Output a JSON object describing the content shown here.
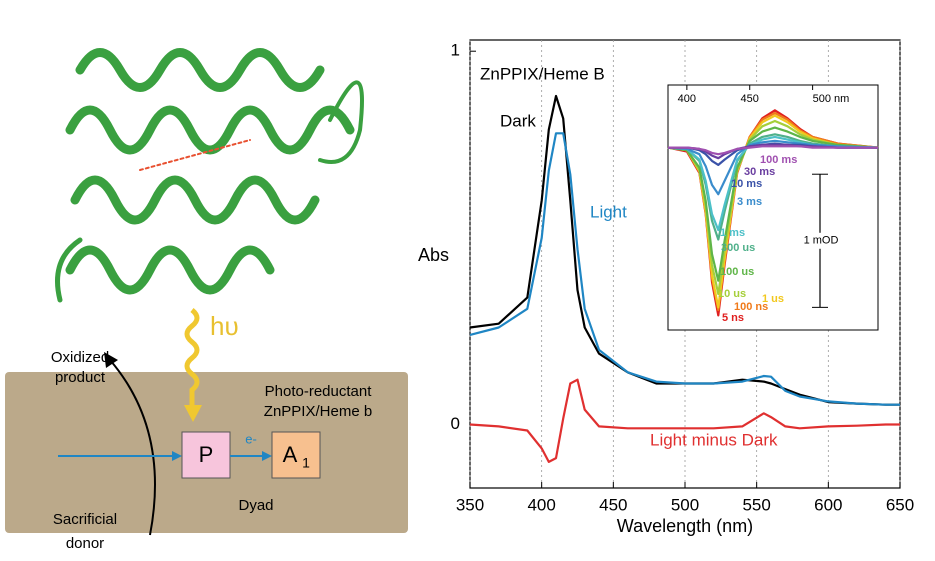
{
  "chart_data": [
    {
      "type": "line",
      "annotation": "ZnPPIX/Heme B",
      "ylabel": "Abs",
      "xlabel": "Wavelength (nm)",
      "x": [
        350,
        370,
        390,
        400,
        405,
        410,
        415,
        420,
        425,
        430,
        440,
        460,
        480,
        500,
        520,
        540,
        555,
        560,
        570,
        580,
        600,
        620,
        640,
        650
      ],
      "series": [
        {
          "name": "Dark",
          "color": "#000000",
          "values": [
            0.26,
            0.27,
            0.34,
            0.6,
            0.79,
            0.88,
            0.82,
            0.6,
            0.36,
            0.26,
            0.19,
            0.14,
            0.11,
            0.11,
            0.11,
            0.12,
            0.115,
            0.11,
            0.095,
            0.08,
            0.06,
            0.056,
            0.053,
            0.053
          ]
        },
        {
          "name": "Light",
          "color": "#1f86c4",
          "values": [
            0.24,
            0.26,
            0.31,
            0.5,
            0.68,
            0.78,
            0.78,
            0.67,
            0.47,
            0.31,
            0.2,
            0.14,
            0.115,
            0.11,
            0.11,
            0.115,
            0.13,
            0.128,
            0.09,
            0.075,
            0.062,
            0.056,
            0.053,
            0.053
          ]
        },
        {
          "name": "Light minus Dark",
          "color": "#e03030",
          "values": [
            0,
            -0.005,
            -0.016,
            -0.064,
            -0.1,
            -0.09,
            0.016,
            0.11,
            0.12,
            0.04,
            -0.005,
            -0.01,
            -0.01,
            -0.01,
            -0.01,
            -0.005,
            0.03,
            0.02,
            -0.005,
            -0.01,
            -0.005,
            -0.003,
            0,
            0
          ]
        }
      ],
      "xlim": [
        350,
        650
      ],
      "xticks": [
        350,
        400,
        450,
        500,
        550,
        600,
        650
      ],
      "ylim": [
        -0.17,
        1.03
      ],
      "yticks": [
        0,
        1
      ],
      "grid": true
    },
    {
      "type": "line",
      "x": [
        385,
        400,
        410,
        415,
        420,
        425,
        430,
        440,
        450,
        460,
        470,
        480,
        490,
        500,
        520,
        552
      ],
      "xlim": [
        385,
        552
      ],
      "xticks": [
        400,
        450,
        {
          "value": 500,
          "label": "500 nm"
        }
      ],
      "ylim": [
        -1.37,
        0.47
      ],
      "scale_bar": {
        "value": 1,
        "label": "1 mOD"
      },
      "series": [
        {
          "name": "5 ns",
          "color": "#e02020",
          "values": [
            0,
            -0.03,
            -0.19,
            -0.5,
            -1.01,
            -1.26,
            -0.88,
            -0.19,
            0.08,
            0.22,
            0.28,
            0.22,
            0.14,
            0.08,
            0.03,
            0
          ]
        },
        {
          "name": "100 ns",
          "color": "#f07a1a",
          "values": [
            0,
            -0.02,
            -0.18,
            -0.49,
            -0.98,
            -1.22,
            -0.85,
            -0.18,
            0.08,
            0.21,
            0.26,
            0.21,
            0.13,
            0.08,
            0.03,
            0
          ]
        },
        {
          "name": "1 us",
          "color": "#f2c81e",
          "values": [
            0,
            -0.02,
            -0.18,
            -0.48,
            -0.96,
            -1.2,
            -0.84,
            -0.18,
            0.07,
            0.19,
            0.24,
            0.19,
            0.12,
            0.07,
            0.02,
            0
          ]
        },
        {
          "name": "10 us",
          "color": "#a6cf3a",
          "values": [
            0,
            -0.02,
            -0.17,
            -0.44,
            -0.88,
            -1.1,
            -0.77,
            -0.17,
            0.06,
            0.16,
            0.2,
            0.16,
            0.1,
            0.06,
            0.02,
            0
          ]
        },
        {
          "name": "100 us",
          "color": "#5fb548",
          "values": [
            0,
            -0.02,
            -0.15,
            -0.4,
            -0.8,
            -1,
            -0.7,
            -0.15,
            0.05,
            0.12,
            0.15,
            0.12,
            0.08,
            0.05,
            0.02,
            0
          ]
        },
        {
          "name": "300 us",
          "color": "#4fb08a",
          "values": [
            0,
            -0.01,
            -0.1,
            -0.28,
            -0.55,
            -0.69,
            -0.48,
            -0.1,
            0.03,
            0.08,
            0.1,
            0.08,
            0.05,
            0.03,
            0.01,
            0
          ]
        },
        {
          "name": "1 ms",
          "color": "#4cc0c8",
          "values": [
            0,
            -0.01,
            -0.09,
            -0.25,
            -0.5,
            -0.62,
            -0.43,
            -0.09,
            0.02,
            0.06,
            0.08,
            0.06,
            0.04,
            0.02,
            0.01,
            0
          ]
        },
        {
          "name": "3 ms",
          "color": "#3a8ccc",
          "values": [
            0,
            -0.01,
            -0.05,
            -0.14,
            -0.28,
            -0.35,
            -0.25,
            -0.05,
            0.02,
            0.04,
            0.05,
            0.04,
            0.03,
            0.02,
            0.01,
            0
          ]
        },
        {
          "name": "10 ms",
          "color": "#3a52a8",
          "values": [
            0,
            0,
            -0.02,
            -0.05,
            -0.1,
            -0.13,
            -0.09,
            -0.02,
            0.01,
            0.02,
            0.03,
            0.02,
            0.02,
            0.01,
            0,
            0
          ]
        },
        {
          "name": "30 ms",
          "color": "#6a3ea0",
          "values": [
            0,
            0,
            -0.01,
            -0.03,
            -0.06,
            -0.08,
            -0.05,
            -0.01,
            0.01,
            0.02,
            0.02,
            0.02,
            0.01,
            0.01,
            0,
            0
          ]
        },
        {
          "name": "100 ms",
          "color": "#a050b0",
          "values": [
            0,
            0,
            -0.01,
            -0.02,
            -0.04,
            -0.05,
            -0.04,
            -0.01,
            0,
            0.01,
            0.01,
            0.01,
            0.01,
            0,
            0,
            0
          ]
        }
      ]
    }
  ],
  "diagram": {
    "light": "hυ",
    "product": [
      "Oxidized",
      "product"
    ],
    "reductant": [
      "Photo-reductant",
      "ZnPPIX/Heme b"
    ],
    "donor_box": "P",
    "electron": "e-",
    "acceptor": "A",
    "acceptor_sub": "1",
    "dyad": "Dyad",
    "donor": [
      "Sacrificial",
      "donor"
    ]
  }
}
